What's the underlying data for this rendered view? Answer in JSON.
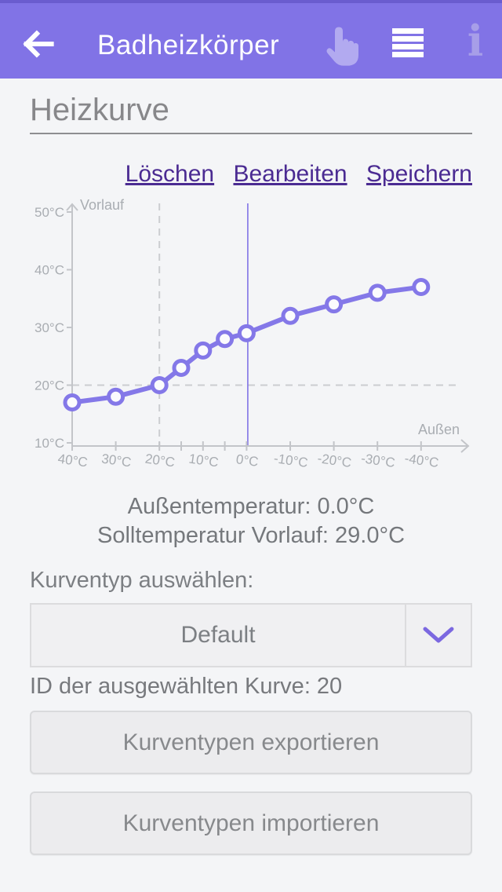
{
  "header": {
    "title": "Badheizkörper",
    "bar_color": "#8173e6",
    "statusbar_color": "#6a5ccf",
    "icon_color": "#b2aaf0"
  },
  "section": {
    "title": "Heizkurve"
  },
  "actions": {
    "delete_label": "Löschen",
    "edit_label": "Bearbeiten",
    "save_label": "Speichern"
  },
  "chart_data": {
    "type": "line",
    "xlabel": "Außen",
    "ylabel": "Vorlauf",
    "x": [
      40,
      30,
      20,
      15,
      10,
      5,
      0,
      -10,
      -20,
      -30,
      -40
    ],
    "values": [
      17,
      18,
      20,
      23,
      26,
      28,
      29,
      32,
      34,
      36,
      37
    ],
    "x_major_ticks": [
      40,
      30,
      20,
      10,
      0,
      -10,
      -20,
      -30,
      -40
    ],
    "x_minor_ticks": [
      15,
      5
    ],
    "x_tick_suffix": "°C",
    "y_ticks": [
      50,
      40,
      30,
      20,
      10
    ],
    "y_tick_suffix": "°C",
    "x_axis_reversed": true,
    "xlim": [
      40,
      -40
    ],
    "ylim": [
      10,
      50
    ],
    "reference_lines": {
      "dashed_vertical_at_x": 20,
      "dashed_horizontal_at_y": 20,
      "solid_vertical_at_x": 0
    },
    "line_color": "#8478e8",
    "marker": {
      "fill": "#fbfbfd",
      "stroke": "#8478e8"
    },
    "axis_color": "#c3c5c9",
    "label_color": "#a9adb2",
    "dash_color": "#cbcdd0",
    "cursor_line_color": "#8173e6",
    "legend": null,
    "grid": "reference-lines-only"
  },
  "readout": {
    "line1": "Außentemperatur: 0.0°C",
    "line2": "Solltemperatur Vorlauf: 29.0°C"
  },
  "curve_select": {
    "label": "Kurventyp auswählen:",
    "value": "Default",
    "id_line": "ID der ausgewählten Kurve: 20"
  },
  "buttons": {
    "export_label": "Kurventypen exportieren",
    "import_label": "Kurventypen importieren"
  }
}
